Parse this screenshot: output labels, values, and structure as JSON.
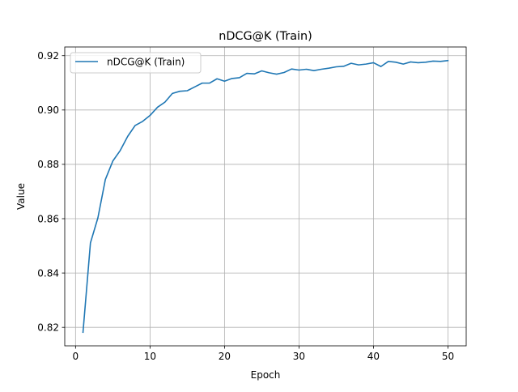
{
  "chart_data": {
    "type": "line",
    "title": "nDCG@K (Train)",
    "xlabel": "Epoch",
    "ylabel": "Value",
    "xlim": [
      -1.45,
      52.45
    ],
    "ylim": [
      0.8132,
      0.9232
    ],
    "xticks": [
      0,
      10,
      20,
      30,
      40,
      50
    ],
    "xtick_labels": [
      "0",
      "10",
      "20",
      "30",
      "40",
      "50"
    ],
    "yticks": [
      0.82,
      0.84,
      0.86,
      0.88,
      0.9,
      0.92
    ],
    "ytick_labels": [
      "0.82",
      "0.84",
      "0.86",
      "0.88",
      "0.90",
      "0.92"
    ],
    "grid": true,
    "legend_position": "top-left",
    "series": [
      {
        "name": "nDCG@K (Train)",
        "color": "#1f77b4",
        "x": [
          1,
          2,
          3,
          4,
          5,
          6,
          7,
          8,
          9,
          10,
          11,
          12,
          13,
          14,
          15,
          16,
          17,
          18,
          19,
          20,
          21,
          22,
          23,
          24,
          25,
          26,
          27,
          28,
          29,
          30,
          31,
          32,
          33,
          34,
          35,
          36,
          37,
          38,
          39,
          40,
          41,
          42,
          43,
          44,
          45,
          46,
          47,
          48,
          49,
          50
        ],
        "y": [
          0.8182,
          0.8511,
          0.8603,
          0.8744,
          0.8812,
          0.8851,
          0.8903,
          0.8943,
          0.8958,
          0.898,
          0.901,
          0.9029,
          0.9061,
          0.9069,
          0.9071,
          0.9085,
          0.9099,
          0.9099,
          0.9115,
          0.9106,
          0.9116,
          0.9119,
          0.9135,
          0.9133,
          0.9144,
          0.9137,
          0.9132,
          0.9138,
          0.9151,
          0.9147,
          0.915,
          0.9145,
          0.915,
          0.9154,
          0.9159,
          0.9161,
          0.9172,
          0.9166,
          0.9169,
          0.9174,
          0.916,
          0.9179,
          0.9176,
          0.9169,
          0.9177,
          0.9174,
          0.9176,
          0.918,
          0.9179,
          0.9182
        ]
      }
    ]
  }
}
